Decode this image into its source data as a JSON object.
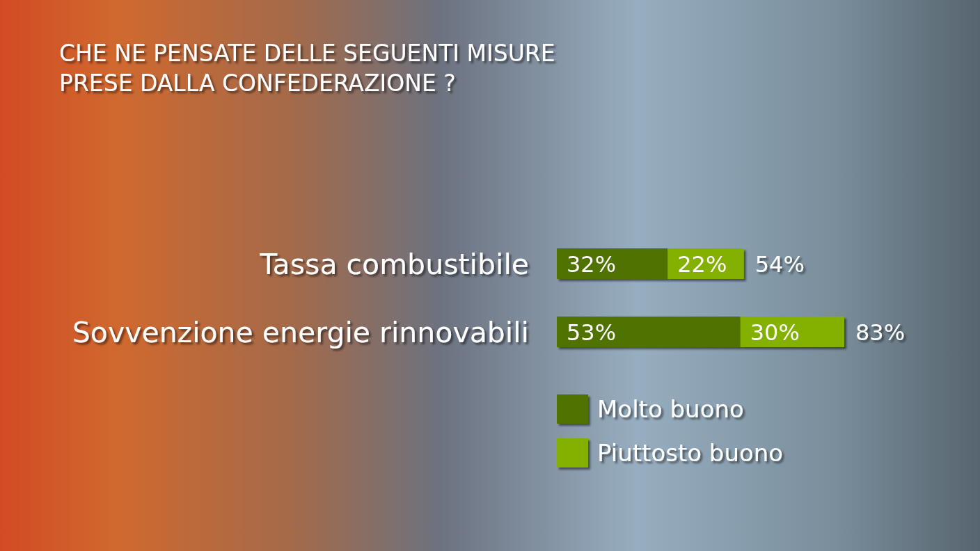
{
  "chart_data": {
    "type": "bar",
    "orientation": "horizontal",
    "stacked": true,
    "title": "CHE NE PENSATE DELLE SEGUENTI MISURE\nPRESE DALLA CONFEDERAZIONE ?",
    "categories": [
      "Tassa combustibile",
      "Sovvenzione energie rinnovabili"
    ],
    "series": [
      {
        "name": "Molto buono",
        "color": "#4f7200",
        "values": [
          32,
          53
        ],
        "value_labels": [
          "32%",
          "53%"
        ]
      },
      {
        "name": "Piuttosto buono",
        "color": "#84b000",
        "values": [
          22,
          30
        ],
        "value_labels": [
          "22%",
          "30%"
        ]
      }
    ],
    "totals": [
      "54%",
      "83%"
    ],
    "legend": "bottom"
  }
}
